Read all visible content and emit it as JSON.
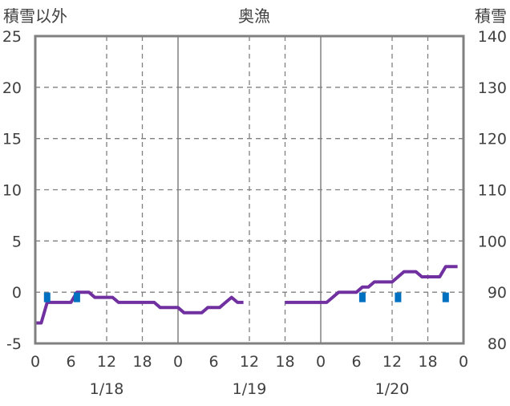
{
  "chart_data": {
    "type": "line",
    "title": "奥漁",
    "y_left_label": "積雪以外",
    "y_right_label": "積雪",
    "y_left_range": [
      -5,
      25
    ],
    "y_left_ticks": [
      -5,
      0,
      5,
      10,
      15,
      20,
      25
    ],
    "y_right_range": [
      80,
      140
    ],
    "y_right_ticks": [
      80,
      90,
      100,
      110,
      120,
      130,
      140
    ],
    "x_range_hours": [
      0,
      72
    ],
    "x_tick_labels": [
      "0",
      "6",
      "12",
      "18",
      "0",
      "6",
      "12",
      "18",
      "0",
      "6",
      "12",
      "18",
      "0"
    ],
    "date_labels": [
      {
        "hour": 12,
        "label": "1/18"
      },
      {
        "hour": 36,
        "label": "1/19"
      },
      {
        "hour": 60,
        "label": "1/20"
      }
    ],
    "grid": "dashed horizontal at every left tick; dashed vertical at 12h and 18h; solid vertical at day boundaries",
    "colors": {
      "snow_depth_line": "#7030a0",
      "precip_marker": "#0070c0",
      "axis": "#808080",
      "grid": "#808080"
    },
    "series": [
      {
        "axis": "right",
        "kind": "line",
        "color": "#7030a0",
        "points": [
          [
            0,
            84
          ],
          [
            1,
            84
          ],
          [
            2,
            88
          ],
          [
            3,
            88
          ],
          [
            4,
            88
          ],
          [
            5,
            88
          ],
          [
            6,
            88
          ],
          [
            7,
            90
          ],
          [
            8,
            90
          ],
          [
            9,
            90
          ],
          [
            10,
            89
          ],
          [
            11,
            89
          ],
          [
            12,
            89
          ],
          [
            13,
            89
          ],
          [
            14,
            88
          ],
          [
            15,
            88
          ],
          [
            16,
            88
          ],
          [
            17,
            88
          ],
          [
            18,
            88
          ],
          [
            19,
            88
          ],
          [
            20,
            88
          ],
          [
            21,
            87
          ],
          [
            22,
            87
          ],
          [
            23,
            87
          ],
          [
            24,
            87
          ],
          [
            25,
            86
          ],
          [
            26,
            86
          ],
          [
            27,
            86
          ],
          [
            28,
            86
          ],
          [
            29,
            87
          ],
          [
            30,
            87
          ],
          [
            31,
            87
          ],
          [
            32,
            88
          ],
          [
            33,
            89
          ],
          [
            34,
            88
          ],
          [
            35,
            88
          ],
          null,
          [
            42,
            88
          ],
          [
            43,
            88
          ],
          [
            44,
            88
          ],
          [
            45,
            88
          ],
          [
            46,
            88
          ],
          [
            47,
            88
          ],
          [
            48,
            88
          ],
          [
            49,
            88
          ],
          [
            50,
            89
          ],
          [
            51,
            90
          ],
          [
            52,
            90
          ],
          [
            53,
            90
          ],
          [
            54,
            90
          ],
          [
            55,
            91
          ],
          [
            56,
            91
          ],
          [
            57,
            92
          ],
          [
            58,
            92
          ],
          [
            59,
            92
          ],
          [
            60,
            92
          ],
          [
            61,
            93
          ],
          [
            62,
            94
          ],
          [
            63,
            94
          ],
          [
            64,
            94
          ],
          [
            65,
            93
          ],
          [
            66,
            93
          ],
          [
            67,
            93
          ],
          [
            68,
            93
          ],
          [
            69,
            95
          ],
          [
            70,
            95
          ],
          [
            71,
            95
          ]
        ]
      },
      {
        "axis": "left",
        "kind": "markers",
        "color": "#0070c0",
        "points": [
          [
            2,
            -0.5
          ],
          [
            7,
            -0.5
          ],
          [
            55,
            -0.5
          ],
          [
            61,
            -0.5
          ],
          [
            69,
            -0.5
          ]
        ]
      }
    ]
  }
}
